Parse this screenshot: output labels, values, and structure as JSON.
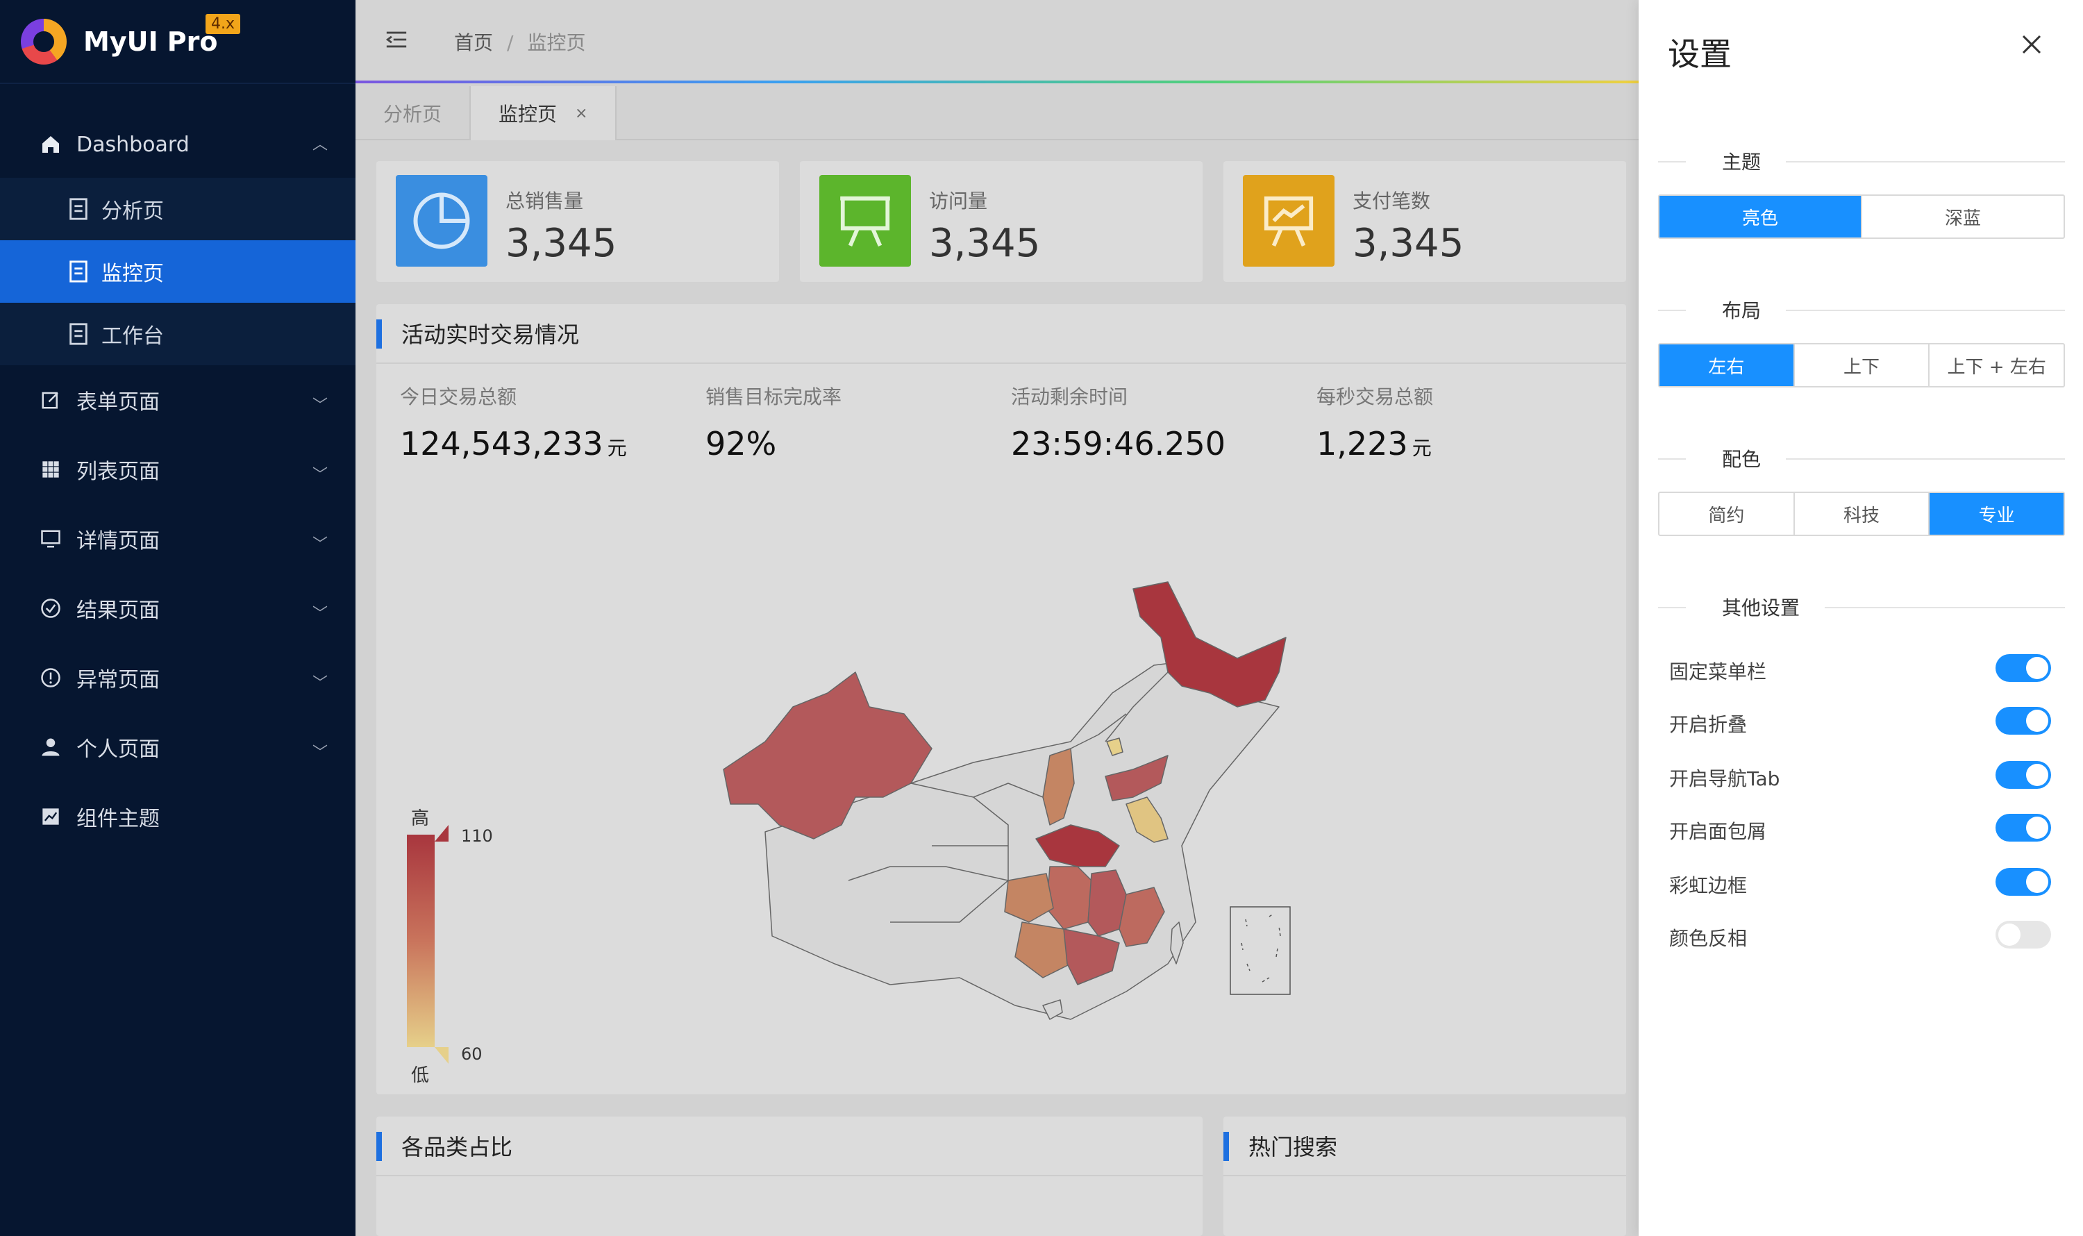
{
  "app": {
    "name": "MyUI Pro",
    "version": "4.x"
  },
  "sidebar": {
    "items": [
      {
        "label": "Dashboard",
        "icon": "home-icon"
      },
      {
        "label": "表单页面",
        "icon": "edit-icon"
      },
      {
        "label": "列表页面",
        "icon": "grid-icon"
      },
      {
        "label": "详情页面",
        "icon": "monitor-icon"
      },
      {
        "label": "结果页面",
        "icon": "check-circle-icon"
      },
      {
        "label": "异常页面",
        "icon": "alert-circle-icon"
      },
      {
        "label": "个人页面",
        "icon": "user-icon"
      },
      {
        "label": "组件主题",
        "icon": "chart-icon"
      }
    ],
    "dashboard_children": [
      {
        "label": "分析页",
        "active": false
      },
      {
        "label": "监控页",
        "active": true
      },
      {
        "label": "工作台",
        "active": false
      }
    ]
  },
  "header": {
    "breadcrumb": [
      "首页",
      "/",
      "监控页"
    ]
  },
  "tabs": [
    {
      "label": "分析页",
      "active": false
    },
    {
      "label": "监控页",
      "active": true,
      "close": "×"
    }
  ],
  "stats": [
    {
      "label": "总销售量",
      "value": "3,345",
      "color": "#3a8ee0",
      "icon": "pie-chart-icon"
    },
    {
      "label": "访问量",
      "value": "3,345",
      "color": "#5cb52c",
      "icon": "presentation-icon"
    },
    {
      "label": "支付笔数",
      "value": "3,345",
      "color": "#e0a21c",
      "icon": "trend-board-icon"
    }
  ],
  "realtime": {
    "title": "活动实时交易情况",
    "kpis": [
      {
        "label": "今日交易总额",
        "value": "124,543,233",
        "unit": "元"
      },
      {
        "label": "销售目标完成率",
        "value": "92%",
        "unit": ""
      },
      {
        "label": "活动剩余时间",
        "value": "23:59:46.250",
        "unit": ""
      },
      {
        "label": "每秒交易总额",
        "value": "1,223",
        "unit": "元"
      }
    ],
    "legend": {
      "high_label": "高",
      "low_label": "低",
      "max": "110",
      "min": "60"
    }
  },
  "chart_data": {
    "type": "heatmap",
    "scale": {
      "min": 60,
      "max": 110,
      "low_color": "#e6d08a",
      "high_color": "#a8363e"
    },
    "regions": [
      {
        "name": "黑龙江",
        "level": "high"
      },
      {
        "name": "新疆",
        "level": "high"
      },
      {
        "name": "湖北",
        "level": "high"
      },
      {
        "name": "山东",
        "level": "high"
      },
      {
        "name": "江西",
        "level": "high"
      },
      {
        "name": "广东",
        "level": "high"
      },
      {
        "name": "福建",
        "level": "medium"
      },
      {
        "name": "湖南",
        "level": "medium"
      },
      {
        "name": "山西",
        "level": "medium"
      },
      {
        "name": "贵州",
        "level": "medium"
      },
      {
        "name": "广西",
        "level": "medium"
      },
      {
        "name": "江苏",
        "level": "low"
      },
      {
        "name": "北京",
        "level": "low"
      }
    ]
  },
  "bottom_panels": {
    "category": "各品类占比",
    "hot_search": "热门搜索"
  },
  "settings": {
    "title": "设置",
    "theme": {
      "label": "主题",
      "options": [
        "亮色",
        "深蓝"
      ],
      "selected": 0
    },
    "layout": {
      "label": "布局",
      "options": [
        "左右",
        "上下",
        "上下 + 左右"
      ],
      "selected": 0
    },
    "palette": {
      "label": "配色",
      "options": [
        "简约",
        "科技",
        "专业"
      ],
      "selected": 2
    },
    "other": {
      "label": "其他设置",
      "options": [
        {
          "label": "固定菜单栏",
          "on": true
        },
        {
          "label": "开启折叠",
          "on": true
        },
        {
          "label": "开启导航Tab",
          "on": true
        },
        {
          "label": "开启面包屑",
          "on": true
        },
        {
          "label": "彩虹边框",
          "on": true
        },
        {
          "label": "颜色反相",
          "on": false
        }
      ]
    }
  }
}
